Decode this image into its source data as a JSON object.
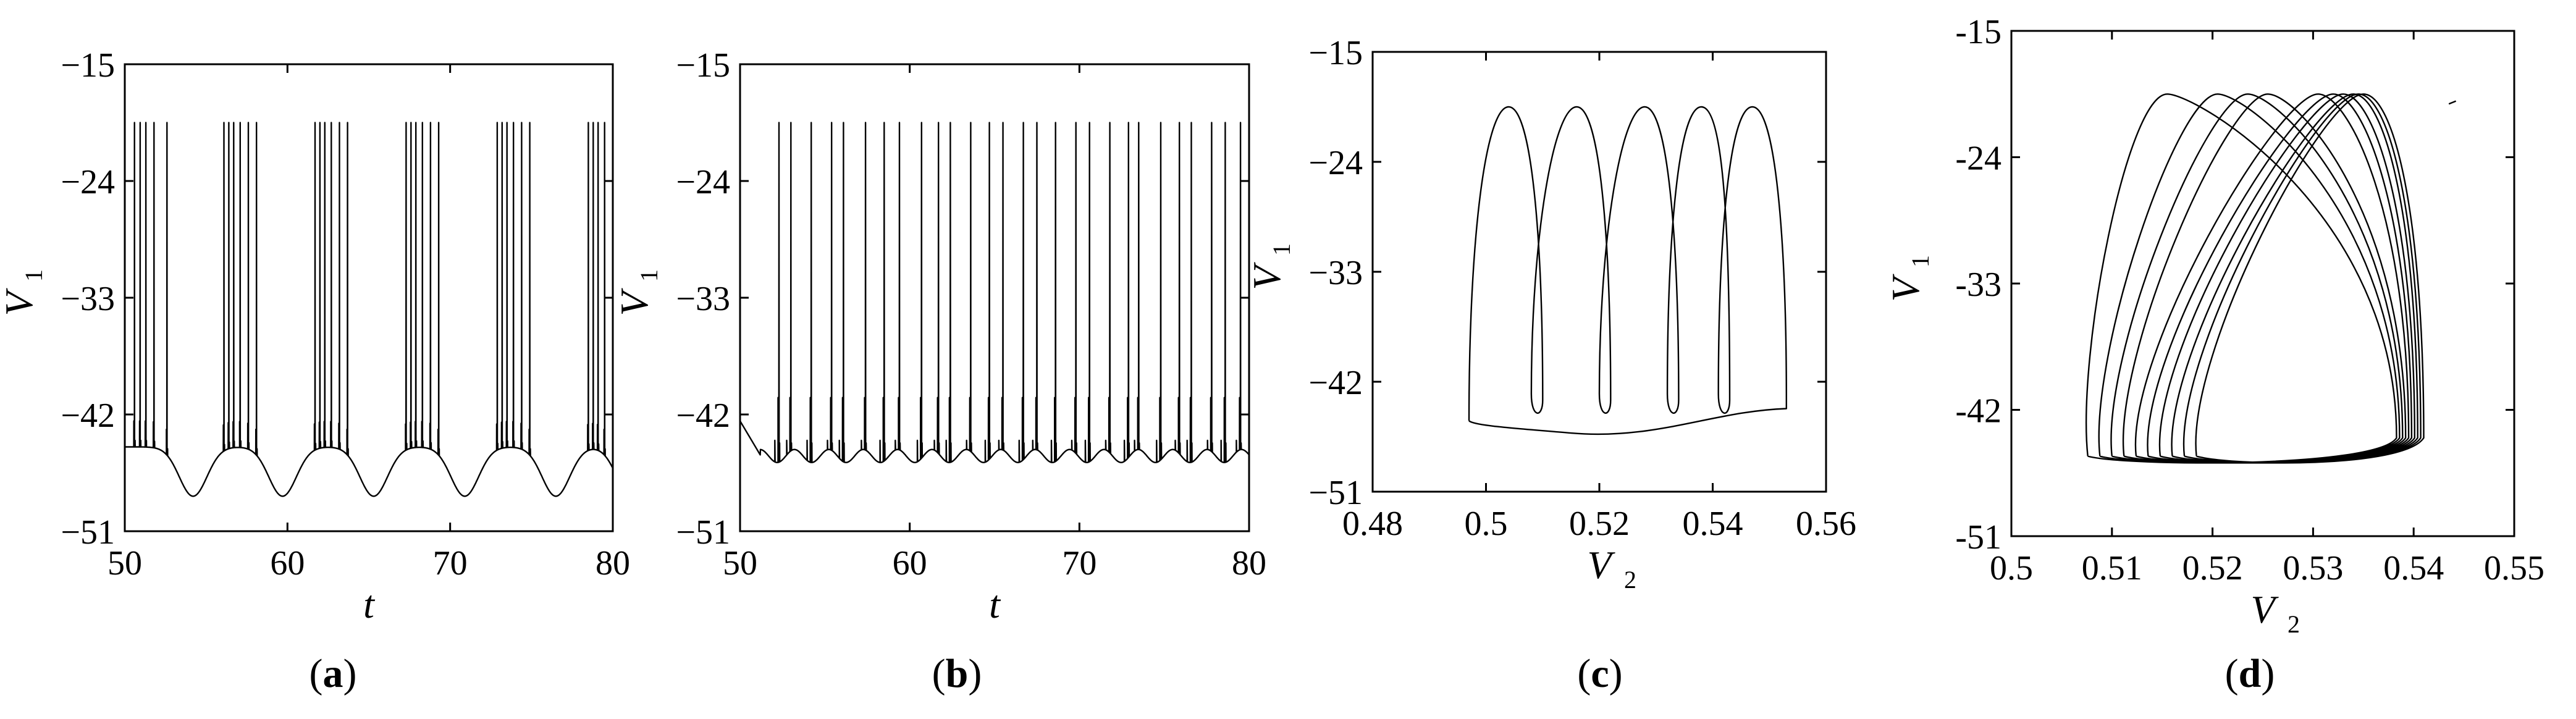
{
  "chart_data": [
    {
      "type": "line",
      "panel_label": "a",
      "xlabel": "t",
      "ylabel": "V",
      "ylabel_sub": "1",
      "xlim": [
        50,
        80
      ],
      "ylim": [
        -51,
        -15
      ],
      "xticks": [
        50,
        60,
        70,
        80
      ],
      "yticks": [
        -51,
        -42,
        -33,
        -24,
        -15
      ],
      "xtick_labels": [
        "50",
        "60",
        "70",
        "80"
      ],
      "ytick_labels": [
        "−51",
        "−42",
        "−33",
        "−24",
        "−15"
      ],
      "series": [
        {
          "description": "bursting time series",
          "baseline": -44.5,
          "valley": -48.3,
          "peak": -19.5,
          "burst_period": 5.6,
          "bursts": [
            {
              "t": [
                50.6,
                50.95,
                51.3,
                51.8,
                52.6
              ]
            },
            {
              "t": [
                56.1,
                56.4,
                56.7,
                57.1,
                57.6,
                58.1
              ]
            },
            {
              "t": [
                61.7,
                62.0,
                62.3,
                62.7,
                63.2,
                63.7
              ]
            },
            {
              "t": [
                67.3,
                67.6,
                67.9,
                68.3,
                68.8,
                69.3
              ]
            },
            {
              "t": [
                72.9,
                73.2,
                73.5,
                73.9,
                74.4,
                74.9
              ]
            },
            {
              "t": [
                78.5,
                78.8,
                79.1,
                79.5
              ]
            }
          ]
        }
      ]
    },
    {
      "type": "line",
      "panel_label": "b",
      "xlabel": "t",
      "ylabel": "V",
      "ylabel_sub": "1",
      "xlim": [
        50,
        80
      ],
      "ylim": [
        -51,
        -15
      ],
      "xticks": [
        50,
        60,
        70,
        80
      ],
      "yticks": [
        -51,
        -42,
        -33,
        -24,
        -15
      ],
      "xtick_labels": [
        "50",
        "60",
        "70",
        "80"
      ],
      "ytick_labels": [
        "−51",
        "−42",
        "−33",
        "−24",
        "−15"
      ],
      "series": [
        {
          "description": "spiking time series",
          "baseline": -45.2,
          "peak": -19.5,
          "spikes": [
            52.3,
            53.0,
            54.2,
            55.4,
            56.1,
            57.4,
            58.5,
            59.4,
            60.7,
            61.7,
            62.4,
            63.6,
            64.7,
            65.5,
            66.7,
            67.5,
            68.6,
            69.8,
            70.6,
            71.8,
            72.9,
            73.5,
            74.8,
            75.9,
            76.6,
            77.8,
            78.6,
            79.5
          ]
        }
      ]
    },
    {
      "type": "line",
      "panel_label": "c",
      "xlabel": "V",
      "xlabel_sub": "2",
      "ylabel": "V",
      "ylabel_sub": "1",
      "xlim": [
        0.48,
        0.56
      ],
      "ylim": [
        -51,
        -15
      ],
      "xticks": [
        0.48,
        0.5,
        0.52,
        0.54,
        0.56
      ],
      "yticks": [
        -51,
        -42,
        -33,
        -24,
        -15
      ],
      "xtick_labels": [
        "0.48",
        "0.5",
        "0.52",
        "0.54",
        "0.56"
      ],
      "ytick_labels": [
        "−51",
        "−42",
        "−33",
        "−24",
        "−15"
      ],
      "series": [
        {
          "description": "phase portrait, 5 loops",
          "loop_peaks": [
            {
              "v2": 0.504,
              "v1": -19.5
            },
            {
              "v2": 0.516,
              "v1": -19.5
            },
            {
              "v2": 0.528,
              "v1": -19.5
            },
            {
              "v2": 0.538,
              "v1": -19.5
            },
            {
              "v2": 0.547,
              "v1": -19.5
            }
          ],
          "loop_dips": [
            0.51,
            0.522,
            0.534,
            0.543
          ],
          "bottom_v1": -45.5,
          "v2_range": [
            0.497,
            0.553
          ]
        }
      ]
    },
    {
      "type": "line",
      "panel_label": "d",
      "xlabel": "V",
      "xlabel_sub": "2",
      "ylabel": "V",
      "ylabel_sub": "1",
      "xlim": [
        0.5,
        0.55
      ],
      "ylim": [
        -51,
        -15
      ],
      "xticks": [
        0.5,
        0.51,
        0.52,
        0.53,
        0.54,
        0.55
      ],
      "yticks": [
        -51,
        -42,
        -33,
        -24,
        -15
      ],
      "xtick_labels": [
        "0.5",
        "0.51",
        "0.52",
        "0.53",
        "0.54",
        "0.55"
      ],
      "ytick_labels": [
        "-51",
        "-42",
        "-33",
        "-24",
        "-15"
      ],
      "series": [
        {
          "description": "phase portrait, overlapping loops",
          "loop_peaks_v2": [
            0.5155,
            0.5205,
            0.5235,
            0.5255,
            0.5305,
            0.532,
            0.533,
            0.534,
            0.5345,
            0.535
          ],
          "peak_v1": -19.5,
          "bottom_v1": -45.5,
          "v2_range": [
            0.507,
            0.541
          ]
        }
      ]
    }
  ]
}
